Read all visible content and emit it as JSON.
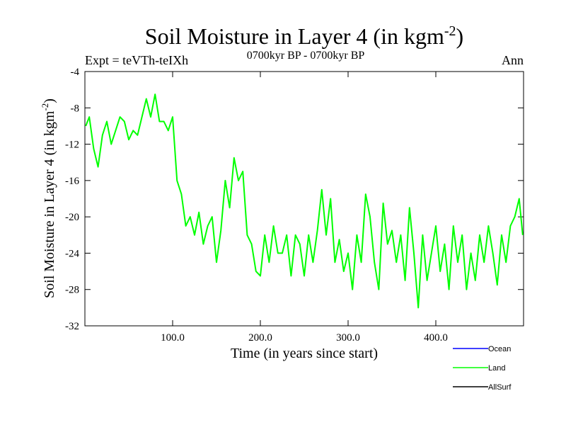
{
  "title": {
    "main": "Soil Moisture in Layer 4 (in kgm",
    "sup": "-2",
    "close": ")"
  },
  "header": {
    "expt": "Expt = teVTh-teIXh",
    "period": "0700kyr BP - 0700kyr BP",
    "season": "Ann"
  },
  "legend": {
    "items": [
      {
        "label": "Ocean",
        "color": "#0000ff"
      },
      {
        "label": "Land",
        "color": "#00ff00"
      },
      {
        "label": "AllSurf",
        "color": "#000000"
      }
    ]
  },
  "chart_data": {
    "type": "line",
    "xlabel": "Time (in years since start)",
    "ylabel": {
      "main": "Soil Moisture in Layer 4 (in kgm",
      "sup": "-2",
      "close": ")"
    },
    "xlim": [
      0,
      500
    ],
    "ylim": [
      -32,
      -4
    ],
    "xticks": [
      100,
      200,
      300,
      400
    ],
    "xtick_labels": [
      "100.0",
      "200.0",
      "300.0",
      "400.0"
    ],
    "yticks": [
      -32,
      -28,
      -24,
      -20,
      -16,
      -12,
      -8,
      -4
    ],
    "ytick_labels": [
      "-32",
      "-28",
      "-24",
      "-20",
      "-16",
      "-12",
      "-8",
      "-4"
    ],
    "grid": false,
    "series": [
      {
        "name": "Land",
        "color": "#00ff00",
        "x": [
          1,
          5,
          10,
          15,
          20,
          25,
          30,
          35,
          40,
          45,
          50,
          55,
          60,
          65,
          70,
          75,
          80,
          85,
          90,
          95,
          100,
          105,
          110,
          115,
          120,
          125,
          130,
          135,
          140,
          145,
          150,
          155,
          160,
          165,
          170,
          175,
          180,
          185,
          190,
          195,
          200,
          205,
          210,
          215,
          220,
          225,
          230,
          235,
          240,
          245,
          250,
          255,
          260,
          265,
          270,
          275,
          280,
          285,
          290,
          295,
          300,
          305,
          310,
          315,
          320,
          325,
          330,
          335,
          340,
          345,
          350,
          355,
          360,
          365,
          370,
          375,
          380,
          385,
          390,
          395,
          400,
          405,
          410,
          415,
          420,
          425,
          430,
          435,
          440,
          445,
          450,
          455,
          460,
          465,
          470,
          475,
          480,
          485,
          490,
          495,
          499
        ],
        "y": [
          -10,
          -9,
          -12.5,
          -14.5,
          -11,
          -9.5,
          -12,
          -10.5,
          -9,
          -9.5,
          -11.5,
          -10.5,
          -11,
          -9,
          -7,
          -9,
          -6.5,
          -9.5,
          -9.5,
          -10.5,
          -9,
          -16,
          -17.5,
          -21,
          -20,
          -22,
          -19.5,
          -23,
          -21,
          -20,
          -25,
          -21.5,
          -16,
          -19,
          -13.5,
          -16,
          -15,
          -22,
          -23,
          -26,
          -26.5,
          -22,
          -25,
          -21,
          -24,
          -24,
          -22,
          -26.5,
          -22,
          -23,
          -26.5,
          -22,
          -25,
          -21.5,
          -17,
          -22,
          -18,
          -25,
          -22.5,
          -26,
          -24,
          -28,
          -22,
          -25,
          -17.5,
          -20,
          -25,
          -28,
          -18.5,
          -23,
          -21.5,
          -25,
          -22,
          -27,
          -19,
          -24,
          -30,
          -22,
          -27,
          -24,
          -21,
          -26,
          -23,
          -28,
          -21,
          -25,
          -22,
          -28,
          -24,
          -27,
          -22,
          -25,
          -21,
          -24,
          -27.5,
          -22,
          -25,
          -21,
          -20,
          -18,
          -22
        ]
      }
    ]
  }
}
